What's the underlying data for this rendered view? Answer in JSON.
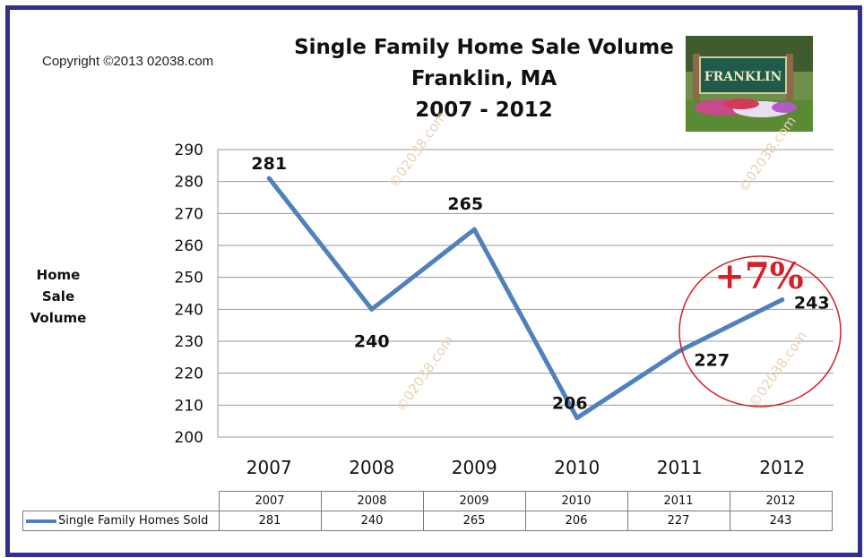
{
  "copyright": "Copyright ©2013 02038.com",
  "watermark": "©02038.com",
  "title_lines": [
    "Single Family Home Sale Volume",
    "Franklin, MA",
    "2007 - 2012"
  ],
  "photo_sign_text": "FRANKLIN",
  "callout": "+7%",
  "colors": {
    "line": "#4f81bd",
    "frame": "#2e3192",
    "callout": "#d42027"
  },
  "chart_data": {
    "type": "line",
    "title": "Single Family Home Sale Volume Franklin, MA 2007 - 2012",
    "xlabel": "",
    "ylabel": "Home Sale Volume",
    "ylabel_lines": [
      "Home",
      "Sale",
      "Volume"
    ],
    "categories": [
      "2007",
      "2008",
      "2009",
      "2010",
      "2011",
      "2012"
    ],
    "series": [
      {
        "name": "Single Family Homes Sold",
        "values": [
          281,
          240,
          265,
          206,
          227,
          243
        ]
      }
    ],
    "ylim": [
      200,
      290
    ],
    "yticks": [
      200,
      210,
      220,
      230,
      240,
      250,
      260,
      270,
      280,
      290
    ],
    "grid": true,
    "legend": "data table below chart",
    "data_table": true
  }
}
